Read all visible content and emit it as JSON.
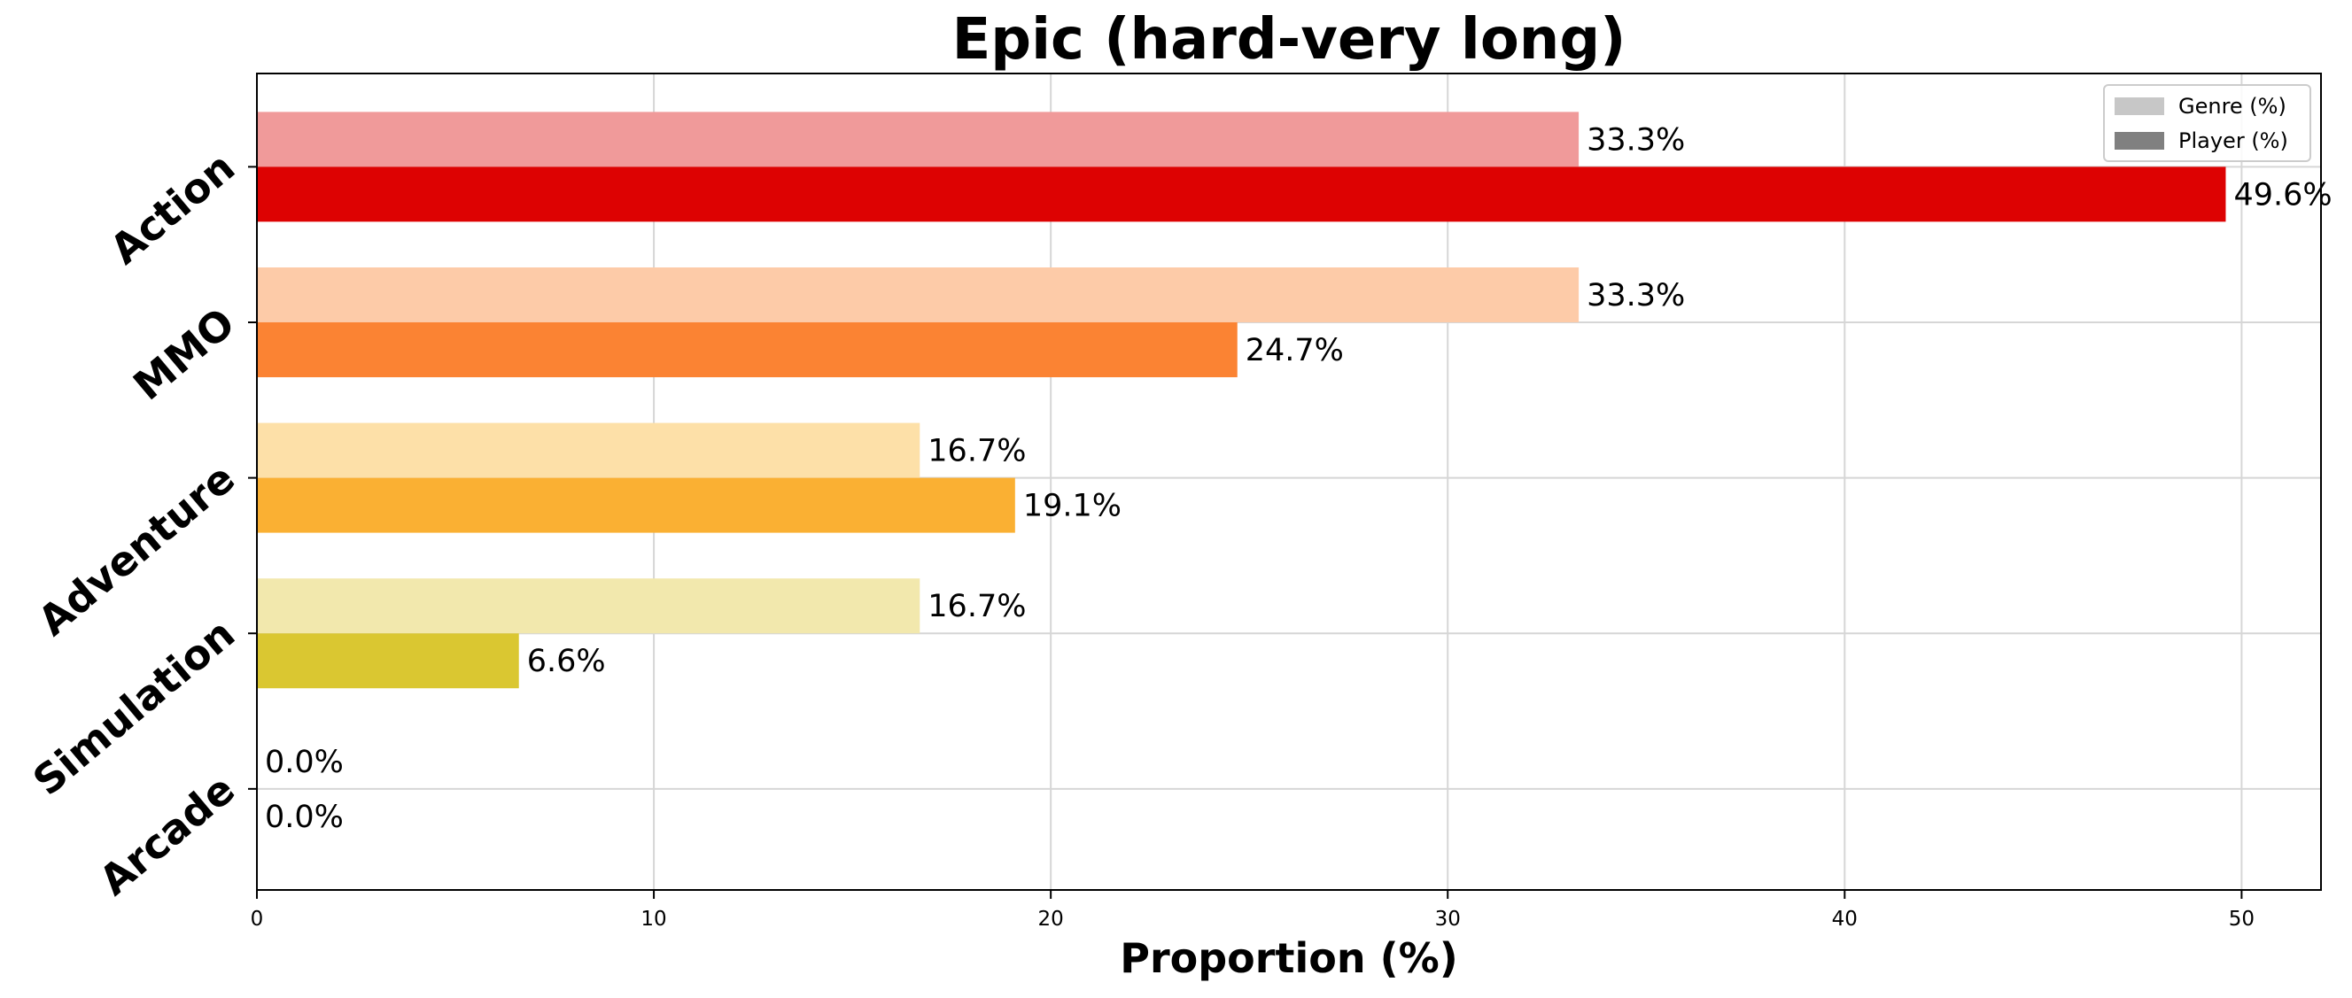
{
  "chart_data": {
    "type": "bar",
    "orientation": "horizontal",
    "title": "Epic (hard-very long)",
    "xlabel": "Proportion (%)",
    "ylabel": "",
    "xlim": [
      0,
      52
    ],
    "xticks": [
      0,
      10,
      20,
      30,
      40,
      50
    ],
    "grid": true,
    "legend_position": "top-right",
    "categories": [
      "Action",
      "MMO",
      "Adventure",
      "Simulation",
      "Arcade"
    ],
    "series": [
      {
        "name": "Genre (%)",
        "values": [
          33.3,
          33.3,
          16.7,
          16.7,
          0.0
        ],
        "labels": [
          "33.3%",
          "33.3%",
          "16.7%",
          "16.7%",
          "0.0%"
        ],
        "colors": [
          "#f09a9a",
          "#fdcba8",
          "#fde0a8",
          "#f2e8ad",
          "#dddddd"
        ],
        "legend_color": "#c7c7c7"
      },
      {
        "name": "Player (%)",
        "values": [
          49.6,
          24.7,
          19.1,
          6.6,
          0.0
        ],
        "labels": [
          "49.6%",
          "24.7%",
          "19.1%",
          "6.6%",
          "0.0%"
        ],
        "colors": [
          "#dd0202",
          "#fb8333",
          "#fab033",
          "#dac731",
          "#999999"
        ],
        "legend_color": "#808080"
      }
    ]
  }
}
